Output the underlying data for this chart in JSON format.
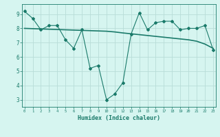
{
  "xlabel": "Humidex (Indice chaleur)",
  "x": [
    0,
    1,
    2,
    3,
    4,
    5,
    6,
    7,
    8,
    9,
    10,
    11,
    12,
    13,
    14,
    15,
    16,
    17,
    18,
    19,
    20,
    21,
    22,
    23
  ],
  "y_line": [
    9.2,
    8.7,
    7.9,
    8.2,
    8.2,
    7.2,
    6.6,
    7.9,
    5.2,
    5.4,
    3.0,
    3.4,
    4.2,
    7.6,
    9.1,
    7.9,
    8.4,
    8.5,
    8.5,
    7.9,
    8.0,
    8.0,
    8.2,
    6.5
  ],
  "y_trend": [
    8.0,
    7.98,
    7.96,
    7.94,
    7.92,
    7.9,
    7.88,
    7.86,
    7.84,
    7.82,
    7.8,
    7.75,
    7.68,
    7.62,
    7.56,
    7.5,
    7.44,
    7.38,
    7.32,
    7.26,
    7.2,
    7.1,
    6.9,
    6.6
  ],
  "line_color": "#1a7a6a",
  "trend_color": "#1a7a6a",
  "bg_color": "#d6f5f0",
  "grid_color": "#b8ddd8",
  "tick_color": "#1a7a6a",
  "ylim": [
    2.5,
    9.7
  ],
  "yticks": [
    3,
    4,
    5,
    6,
    7,
    8,
    9
  ],
  "xticks": [
    0,
    1,
    2,
    3,
    4,
    5,
    6,
    7,
    8,
    9,
    10,
    11,
    12,
    13,
    14,
    15,
    16,
    17,
    18,
    19,
    20,
    21,
    22,
    23
  ]
}
